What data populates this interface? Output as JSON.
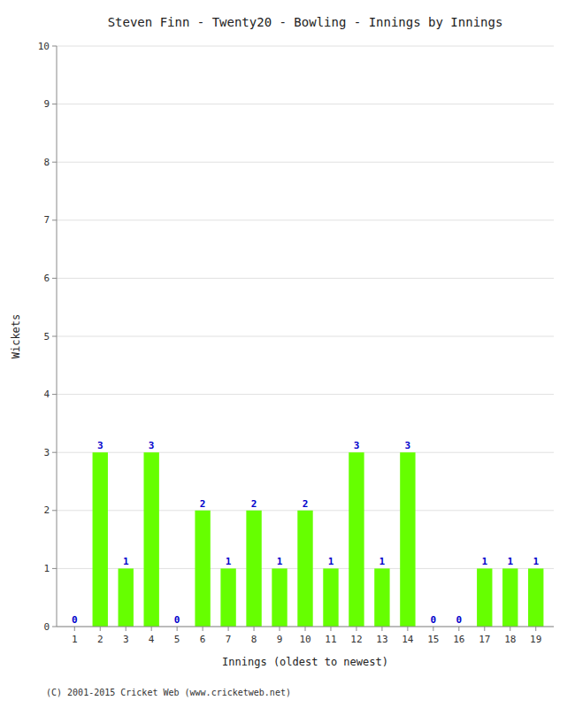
{
  "chart_data": {
    "type": "bar",
    "title": "Steven Finn - Twenty20 - Bowling - Innings by Innings",
    "xlabel": "Innings (oldest to newest)",
    "ylabel": "Wickets",
    "x": [
      1,
      2,
      3,
      4,
      5,
      6,
      7,
      8,
      9,
      10,
      11,
      12,
      13,
      14,
      15,
      16,
      17,
      18,
      19
    ],
    "values": [
      0,
      3,
      1,
      3,
      0,
      2,
      1,
      2,
      1,
      2,
      1,
      3,
      1,
      3,
      0,
      0,
      1,
      1,
      1
    ],
    "color": "#66ff00",
    "xlim": [
      0.3,
      19.7
    ],
    "xticks": [
      1,
      2,
      3,
      4,
      5,
      6,
      7,
      8,
      9,
      10,
      11,
      12,
      13,
      14,
      15,
      16,
      17,
      18,
      19
    ],
    "ylim": [
      0,
      10
    ],
    "yticks": [
      0,
      1,
      2,
      3,
      4,
      5,
      6,
      7,
      8,
      9,
      10
    ],
    "grid": true,
    "data_labels": true,
    "footer": "(C) 2001-2015 Cricket Web (www.cricketweb.net)"
  }
}
